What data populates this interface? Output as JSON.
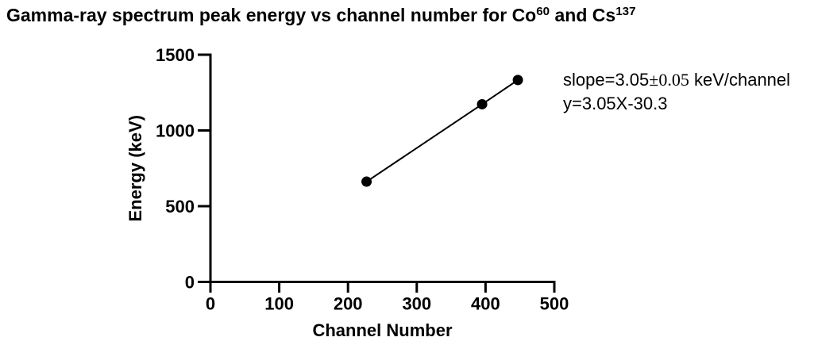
{
  "title": {
    "prefix": "Gamma-ray spectrum peak energy vs channel number for Co",
    "isotope1_superscript": "60",
    "middle": " and Cs",
    "isotope2_superscript": "137"
  },
  "annotation": {
    "slope_prefix": "slope=3.05",
    "slope_uncertainty": "±0.05",
    "slope_suffix": " keV/channel",
    "equation": "y=3.05X-30.3"
  },
  "colors": {
    "foreground": "#000000",
    "background": "#ffffff"
  },
  "chart_data": {
    "type": "scatter",
    "title": "Gamma-ray spectrum peak energy vs channel number for Co^60 and Cs^137",
    "xlabel": "Channel Number",
    "ylabel": "Energy (keV)",
    "x": [
      227,
      395,
      447
    ],
    "y": [
      662,
      1173,
      1333
    ],
    "x_ticks": [
      0,
      100,
      200,
      300,
      400,
      500
    ],
    "y_ticks": [
      0,
      500,
      1000,
      1500
    ],
    "xlim": [
      0,
      500
    ],
    "ylim": [
      0,
      1500
    ],
    "grid": false,
    "legend": false,
    "connect_points_with_line": true,
    "marker": "filled-circle",
    "marker_color": "#000000",
    "line_color": "#000000",
    "fit": {
      "slope": 3.05,
      "slope_uncertainty": 0.05,
      "intercept": -30.3
    },
    "annotations": [
      "slope=3.05±0.05 keV/channel",
      "y=3.05X-30.3"
    ]
  }
}
